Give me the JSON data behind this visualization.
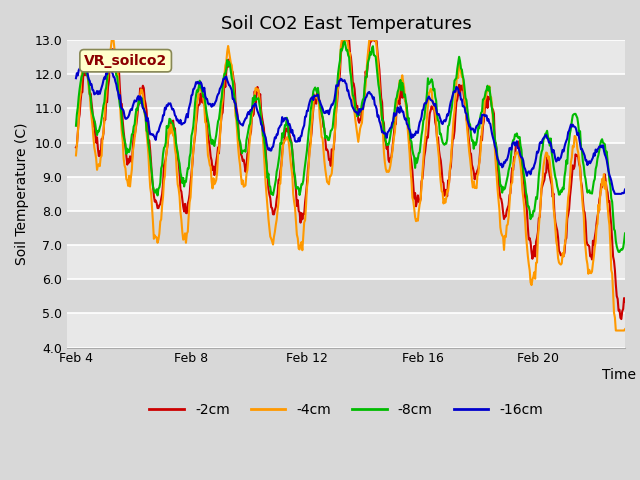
{
  "title": "Soil CO2 East Temperatures",
  "xlabel": "Time",
  "ylabel": "Soil Temperature (C)",
  "ylim": [
    4.0,
    13.0
  ],
  "yticks": [
    4.0,
    5.0,
    6.0,
    7.0,
    8.0,
    9.0,
    10.0,
    11.0,
    12.0,
    13.0
  ],
  "xtick_labels": [
    "Feb 4",
    "Feb 8",
    "Feb 12",
    "Feb 16",
    "Feb 20"
  ],
  "xtick_positions": [
    0,
    4,
    8,
    12,
    16
  ],
  "colors": {
    "m2cm": "#cc0000",
    "m4cm": "#ff9900",
    "m8cm": "#00bb00",
    "m16cm": "#0000cc"
  },
  "legend_labels": [
    "-2cm",
    "-4cm",
    "-8cm",
    "-16cm"
  ],
  "annotation_label": "VR_soilco2",
  "annotation_color": "#8b0000",
  "annotation_bg": "#ffffcc",
  "fig_bg": "#d8d8d8",
  "plot_bg": "#e8e8e8",
  "grid_color": "#ffffff",
  "line_width": 1.5,
  "alt_bg_color": "#d8d8d8",
  "figsize": [
    6.4,
    4.8
  ],
  "dpi": 100
}
